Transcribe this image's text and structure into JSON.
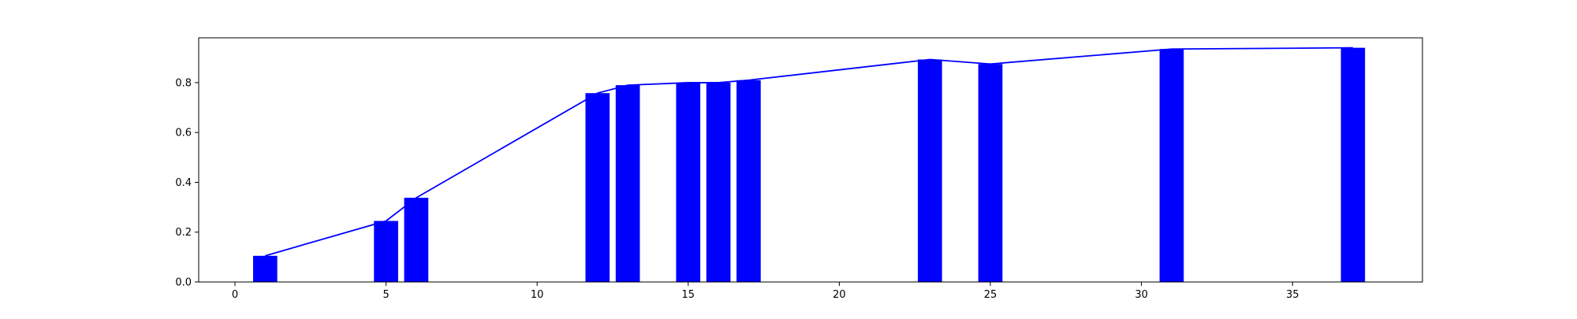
{
  "chart_data": {
    "type": "bar",
    "title": "",
    "xlabel": "",
    "ylabel": "",
    "xlim": [
      -1.2,
      39.3
    ],
    "ylim": [
      0,
      0.98
    ],
    "x_ticks": [
      0,
      5,
      10,
      15,
      20,
      25,
      30,
      35
    ],
    "y_ticks": [
      0.0,
      0.2,
      0.4,
      0.6,
      0.8
    ],
    "bar_width": 0.8,
    "series": [
      {
        "type": "bar",
        "x": [
          1,
          5,
          6,
          12,
          13,
          15,
          16,
          17,
          23,
          25,
          31,
          37
        ],
        "values": [
          0.105,
          0.245,
          0.338,
          0.758,
          0.79,
          0.8,
          0.8,
          0.81,
          0.893,
          0.875,
          0.935,
          0.94
        ],
        "color": "#0000ff"
      },
      {
        "type": "line",
        "x": [
          1,
          5,
          6,
          12,
          13,
          15,
          16,
          17,
          23,
          25,
          31,
          37
        ],
        "values": [
          0.105,
          0.245,
          0.338,
          0.758,
          0.79,
          0.8,
          0.8,
          0.81,
          0.893,
          0.875,
          0.935,
          0.94
        ],
        "color": "#0000ff"
      }
    ],
    "grid": false,
    "legend": "none"
  }
}
